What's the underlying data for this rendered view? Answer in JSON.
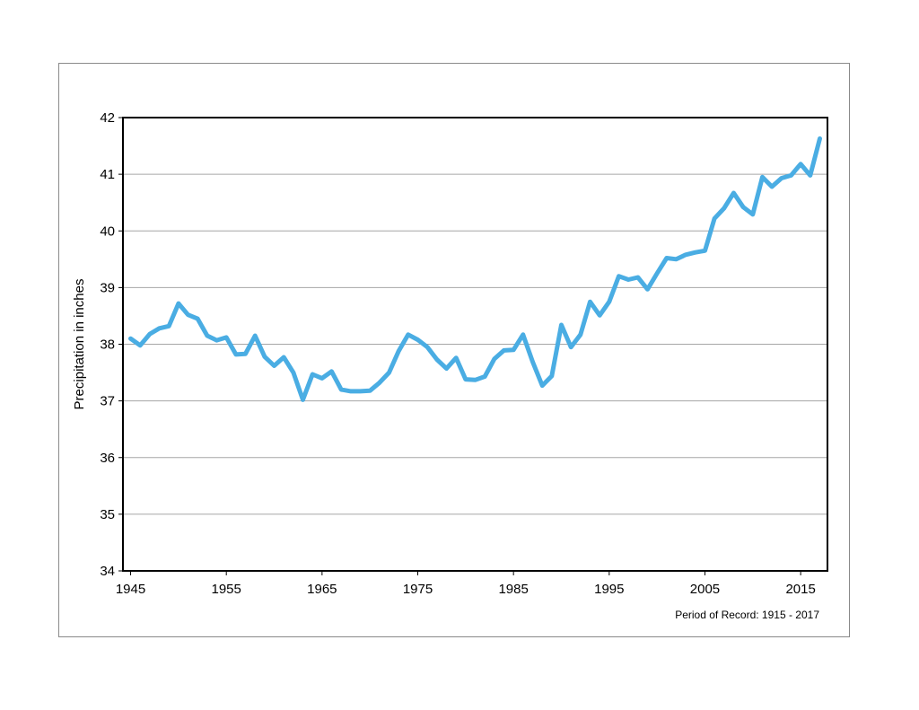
{
  "chart_data": {
    "type": "line",
    "title": "",
    "xlabel": "",
    "ylabel": "Precipitation in inches",
    "note": "Period of Record: 1915 - 2017",
    "xlim": [
      1944.2,
      2017.8
    ],
    "ylim": [
      34,
      42
    ],
    "x_ticks": [
      1945,
      1955,
      1965,
      1975,
      1985,
      1995,
      2005,
      2015
    ],
    "y_ticks": [
      34,
      35,
      36,
      37,
      38,
      39,
      40,
      41,
      42
    ],
    "grid": true,
    "legend": "none",
    "series": [
      {
        "color": "#4aade3",
        "x": [
          1945,
          1946,
          1947,
          1948,
          1949,
          1950,
          1951,
          1952,
          1953,
          1954,
          1955,
          1956,
          1957,
          1958,
          1959,
          1960,
          1961,
          1962,
          1963,
          1964,
          1965,
          1966,
          1967,
          1968,
          1969,
          1970,
          1971,
          1972,
          1973,
          1974,
          1975,
          1976,
          1977,
          1978,
          1979,
          1980,
          1981,
          1982,
          1983,
          1984,
          1985,
          1986,
          1987,
          1988,
          1989,
          1990,
          1991,
          1992,
          1993,
          1994,
          1995,
          1996,
          1997,
          1998,
          1999,
          2000,
          2001,
          2002,
          2003,
          2004,
          2005,
          2006,
          2007,
          2008,
          2009,
          2010,
          2011,
          2012,
          2013,
          2014,
          2015,
          2016,
          2017
        ],
        "y": [
          38.1,
          37.98,
          38.18,
          38.28,
          38.32,
          38.72,
          38.52,
          38.45,
          38.15,
          38.07,
          38.12,
          37.82,
          37.83,
          38.15,
          37.78,
          37.62,
          37.77,
          37.5,
          37.02,
          37.47,
          37.4,
          37.52,
          37.2,
          37.17,
          37.17,
          37.18,
          37.32,
          37.5,
          37.88,
          38.17,
          38.08,
          37.95,
          37.73,
          37.57,
          37.76,
          37.38,
          37.37,
          37.43,
          37.74,
          37.89,
          37.9,
          38.17,
          37.69,
          37.27,
          37.44,
          38.34,
          37.95,
          38.17,
          38.75,
          38.51,
          38.75,
          39.2,
          39.14,
          39.18,
          38.97,
          39.25,
          39.52,
          39.5,
          39.58,
          39.62,
          39.65,
          40.22,
          40.4,
          40.67,
          40.42,
          40.29,
          40.95,
          40.78,
          40.93,
          40.98,
          41.18,
          40.98,
          41.63
        ]
      }
    ]
  }
}
